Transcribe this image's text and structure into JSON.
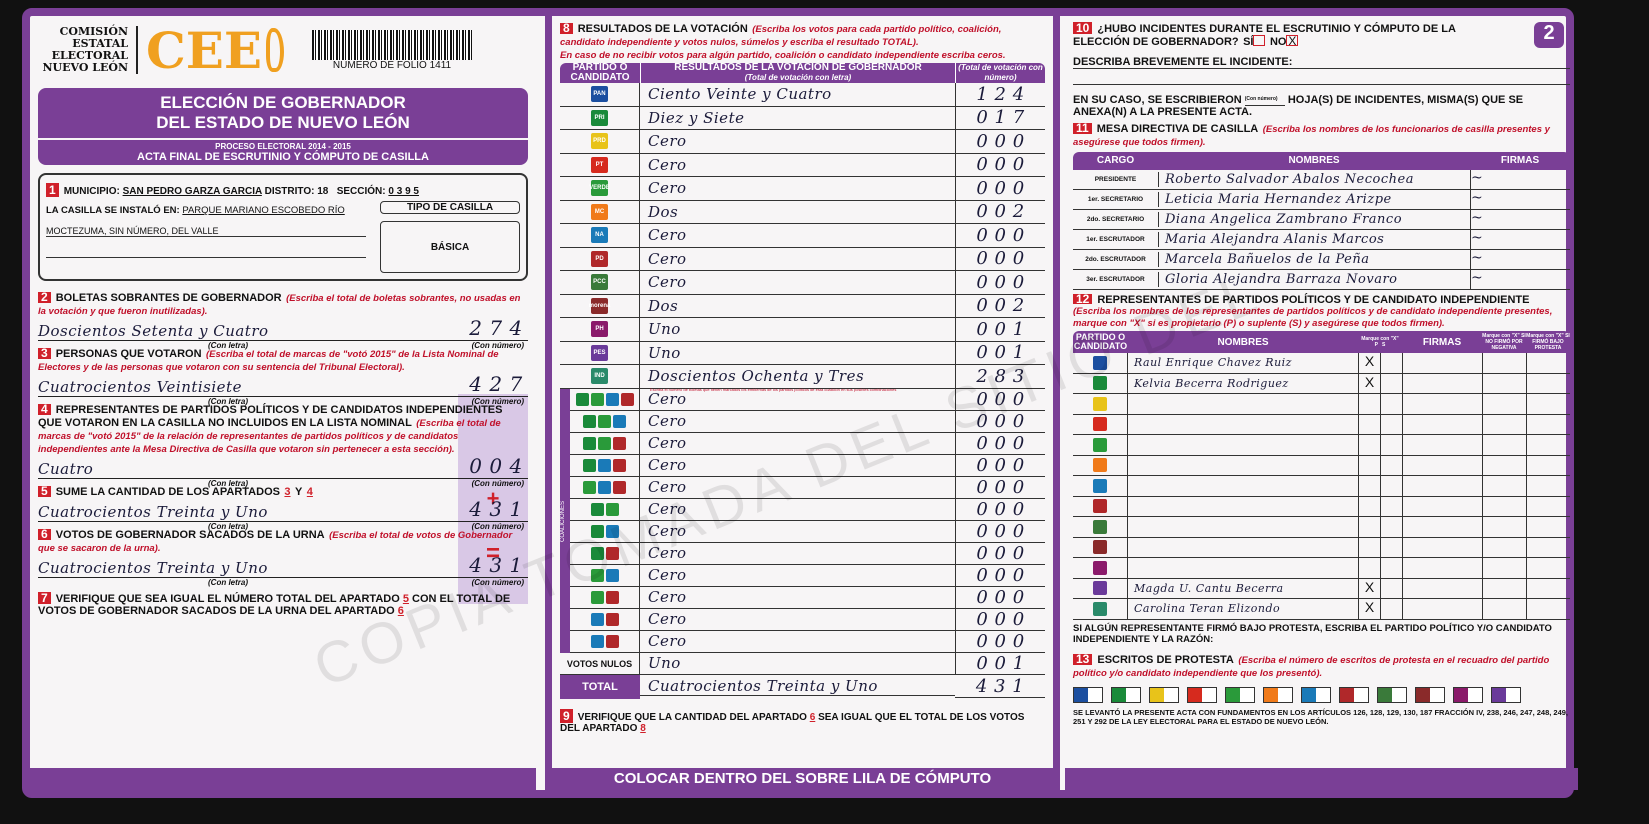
{
  "colors": {
    "purple": "#7a3f96",
    "red": "#d0202a",
    "orange": "#f0a020"
  },
  "header": {
    "org": [
      "COMISIÓN",
      "ESTATAL",
      "ELECTORAL",
      "NUEVO LEÓN"
    ],
    "logo": "CEE",
    "folio": "NUMERO DE FOLIO 1411",
    "title1": "ELECCIÓN DE GOBERNADOR",
    "title2": "DEL ESTADO DE NUEVO LEÓN",
    "process": "PROCESO ELECTORAL 2014 - 2015",
    "acta": "ACTA FINAL DE ESCRUTINIO Y CÓMPUTO DE CASILLA",
    "page": "2"
  },
  "s1": {
    "n": "1",
    "municipio_label": "MUNICIPIO:",
    "municipio": "SAN PEDRO GARZA GARCIA",
    "distrito_label": "DISTRITO:",
    "distrito": "18",
    "seccion_label": "SECCIÓN:",
    "seccion": "0 3 9 5",
    "instalo_label": "LA CASILLA SE INSTALÓ EN:",
    "instalo1": "PARQUE MARIANO ESCOBEDO RÍO",
    "instalo2": "MOCTEZUMA, SIN NÚMERO, DEL VALLE",
    "tipo_label": "TIPO DE CASILLA",
    "tipo": "BÁSICA"
  },
  "labels": {
    "con_letra": "(Con letra)",
    "con_numero": "(Con número)",
    "plus": "+",
    "equals": "="
  },
  "s2": {
    "n": "2",
    "title": "BOLETAS SOBRANTES DE GOBERNADOR",
    "note": "(Escriba el total de boletas sobrantes, no usadas en la votación y que fueron inutilizadas).",
    "letra": "Doscientos Setenta y Cuatro",
    "numero": "2 7 4"
  },
  "s3": {
    "n": "3",
    "title": "PERSONAS QUE VOTARON",
    "note": "(Escriba el total de marcas de \"votó 2015\" de la Lista Nominal de Electores y de las personas que votaron con su sentencia del Tribunal Electoral).",
    "letra": "Cuatrocientos Veintisiete",
    "numero": "4 2 7"
  },
  "s4": {
    "n": "4",
    "title": "REPRESENTANTES DE PARTIDOS POLÍTICOS Y DE CANDIDATOS INDEPENDIENTES QUE VOTARON EN LA CASILLA NO INCLUIDOS EN LA LISTA NOMINAL",
    "note": "(Escriba el total de marcas de \"votó 2015\" de la relación de representantes de partidos políticos y de candidatos independientes ante la Mesa Directiva de Casilla que votaron sin pertenecer a esta sección).",
    "letra": "Cuatro",
    "numero": "0 0 4"
  },
  "s5": {
    "n": "5",
    "title": "SUME LA CANTIDAD DE LOS APARTADOS",
    "a": "3",
    "y": "Y",
    "b": "4",
    "letra": "Cuatrocientos Treinta y Uno",
    "numero": "4 3 1"
  },
  "s6": {
    "n": "6",
    "title": "VOTOS DE GOBERNADOR SACADOS DE LA URNA",
    "note": "(Escriba el total de votos de Gobernador que se sacaron de la urna).",
    "letra": "Cuatrocientos Treinta y Uno",
    "numero": "4 3 1"
  },
  "s7": {
    "n": "7",
    "t1": "VERIFIQUE QUE SEA IGUAL EL NÚMERO TOTAL DEL APARTADO",
    "a": "5",
    "t2": "CON EL TOTAL DE VOTOS DE GOBERNADOR SACADOS DE LA URNA DEL APARTADO",
    "b": "6"
  },
  "s8": {
    "n": "8",
    "title": "RESULTADOS DE LA VOTACIÓN",
    "note1": "(Escriba los votos para cada partido político, coalición, candidato independiente y votos nulos, súmelos y escriba el resultado TOTAL).",
    "note2": "En caso de no recibir votos para algún partido, coalición o candidato independiente escriba ceros.",
    "h_partido": "PARTIDO O CANDIDATO",
    "h_result": "RESULTADOS DE LA VOTACIÓN DE GOBERNADOR",
    "h_result_sub": "(Total de votación con letra)",
    "h_num": "(Total de votación con número)",
    "coaliciones": "COALICIONES",
    "rows": [
      {
        "logo": "PAN",
        "color": "#1c4fa0",
        "letra": "Ciento Veinte y Cuatro",
        "numero": "1 2 4"
      },
      {
        "logo": "PRI",
        "color": "#1a8a3a",
        "letra": "Diez y Siete",
        "numero": "0 1 7"
      },
      {
        "logo": "PRD",
        "color": "#e8c31a",
        "letra": "Cero",
        "numero": "0 0 0"
      },
      {
        "logo": "PT",
        "color": "#d62a1e",
        "letra": "Cero",
        "numero": "0 0 0"
      },
      {
        "logo": "VERDE",
        "color": "#2a9a3a",
        "letra": "Cero",
        "numero": "0 0 0"
      },
      {
        "logo": "MC",
        "color": "#f07a1a",
        "letra": "Dos",
        "numero": "0 0 2"
      },
      {
        "logo": "NA",
        "color": "#1a7ab8",
        "letra": "Cero",
        "numero": "0 0 0"
      },
      {
        "logo": "PD",
        "color": "#b0282a",
        "letra": "Cero",
        "numero": "0 0 0"
      },
      {
        "logo": "PCC",
        "color": "#3a7a3a",
        "letra": "Cero",
        "numero": "0 0 0"
      },
      {
        "logo": "morena",
        "color": "#8a2a2a",
        "letra": "Dos",
        "numero": "0 0 2"
      },
      {
        "logo": "PH",
        "color": "#8a1a6a",
        "letra": "Uno",
        "numero": "0 0 1"
      },
      {
        "logo": "PES",
        "color": "#6a3a9a",
        "letra": "Uno",
        "numero": "0 0 1"
      },
      {
        "logo": "IND",
        "color": "#2a8a6a",
        "letra": "Doscientos Ochenta y Tres",
        "numero": "2 8 3"
      }
    ],
    "coalition_note": "Escriba el número de boletas que tienen marcados los emblemas de los partidos políticos de esta coalición en sus posibles combinaciones",
    "coalition_rows": [
      {
        "logos": "PRI-VERDE-NA-PD",
        "letra": "Cero",
        "numero": "0 0 0"
      },
      {
        "logos": "PRI-VERDE-NA",
        "letra": "Cero",
        "numero": "0 0 0"
      },
      {
        "logos": "PRI-VERDE-PD",
        "letra": "Cero",
        "numero": "0 0 0"
      },
      {
        "logos": "PRI-NA-PD",
        "letra": "Cero",
        "numero": "0 0 0"
      },
      {
        "logos": "VERDE-NA-PD",
        "letra": "Cero",
        "numero": "0 0 0"
      },
      {
        "logos": "PRI-VERDE",
        "letra": "Cero",
        "numero": "0 0 0"
      },
      {
        "logos": "PRI-NA",
        "letra": "Cero",
        "numero": "0 0 0"
      },
      {
        "logos": "PRI-PD",
        "letra": "Cero",
        "numero": "0 0 0"
      },
      {
        "logos": "VERDE-NA",
        "letra": "Cero",
        "numero": "0 0 0"
      },
      {
        "logos": "VERDE-PD",
        "letra": "Cero",
        "numero": "0 0 0"
      },
      {
        "logos": "NA-PD",
        "letra": "Cero",
        "numero": "0 0 0"
      },
      {
        "logos": "NA-PD-2",
        "letra": "Cero",
        "numero": "0 0 0"
      }
    ],
    "nulos_label": "VOTOS NULOS",
    "nulos_letra": "Uno",
    "nulos_numero": "0 0 1",
    "total_label": "TOTAL",
    "total_letra": "Cuatrocientos Treinta y Uno",
    "total_numero": "4 3 1"
  },
  "s9": {
    "n": "9",
    "t1": "VERIFIQUE QUE LA CANTIDAD DEL APARTADO",
    "a": "6",
    "t2": "SEA IGUAL QUE EL TOTAL DE LOS VOTOS DEL APARTADO",
    "b": "8"
  },
  "footer": "COLOCAR DENTRO DEL SOBRE LILA DE CÓMPUTO",
  "s10": {
    "n": "10",
    "q": "¿HUBO INCIDENTES DURANTE EL ESCRUTINIO Y CÓMPUTO DE LA ELECCIÓN DE GOBERNADOR?",
    "si": "SÍ",
    "no": "NO",
    "no_mark": "X",
    "describa": "DESCRIBA BREVEMENTE EL INCIDENTE:",
    "caso1": "EN SU CASO, SE ESCRIBIERON",
    "con_numero": "(Con número)",
    "caso2": "HOJA(S) DE INCIDENTES, MISMA(S) QUE SE ANEXA(N) A LA PRESENTE ACTA."
  },
  "s11": {
    "n": "11",
    "title": "MESA DIRECTIVA DE CASILLA",
    "note": "(Escriba los nombres de los funcionarios de casilla presentes y asegúrese que todos firmen).",
    "h_cargo": "CARGO",
    "h_nombres": "NOMBRES",
    "h_firmas": "FIRMAS",
    "rows": [
      {
        "cargo": "PRESIDENTE",
        "nombre": "Roberto Salvador Abalos Necochea"
      },
      {
        "cargo": "1er. SECRETARIO",
        "nombre": "Leticia Maria Hernandez Arizpe"
      },
      {
        "cargo": "2do. SECRETARIO",
        "nombre": "Diana Angelica Zambrano Franco"
      },
      {
        "cargo": "1er. ESCRUTADOR",
        "nombre": "Maria Alejandra Alanis Marcos"
      },
      {
        "cargo": "2do. ESCRUTADOR",
        "nombre": "Marcela Bañuelos de la Peña"
      },
      {
        "cargo": "3er. ESCRUTADOR",
        "nombre": "Gloria Alejandra Barraza Novaro"
      }
    ]
  },
  "s12": {
    "n": "12",
    "title": "REPRESENTANTES DE PARTIDOS POLÍTICOS Y DE CANDIDATO INDEPENDIENTE",
    "note": "(Escriba los nombres de los representantes de partidos políticos y de candidato independiente presentes, marque con \"X\" si es propietario (P) o suplente (S) y asegúrese que todos firmen).",
    "h_partido": "PARTIDO O CANDIDATO",
    "h_nombres": "NOMBRES",
    "h_marque": "Marque con \"X\"",
    "h_p": "P",
    "h_s": "S",
    "h_firmas": "FIRMAS",
    "h_negativa": "Marque con \"X\" SI NO FIRMÓ POR NEGATIVA",
    "h_protesta": "Marque con \"X\" SI FIRMÓ BAJO PROTESTA",
    "rows": [
      {
        "logo": "PAN",
        "nombre": "Raul Enrique Chavez Ruiz",
        "p": "X"
      },
      {
        "logo": "PRI",
        "nombre": "Kelvia Becerra Rodriguez",
        "p": "X"
      },
      {
        "logo": "PRD",
        "nombre": "",
        "p": ""
      },
      {
        "logo": "PT",
        "nombre": "",
        "p": ""
      },
      {
        "logo": "VERDE",
        "nombre": "",
        "p": ""
      },
      {
        "logo": "MC",
        "nombre": "",
        "p": ""
      },
      {
        "logo": "NA",
        "nombre": "",
        "p": ""
      },
      {
        "logo": "PD",
        "nombre": "",
        "p": ""
      },
      {
        "logo": "PCC",
        "nombre": "",
        "p": ""
      },
      {
        "logo": "morena",
        "nombre": "",
        "p": ""
      },
      {
        "logo": "PH",
        "nombre": "",
        "p": ""
      },
      {
        "logo": "PES",
        "nombre": "Magda U. Cantu Becerra",
        "p": "X"
      },
      {
        "logo": "IND",
        "nombre": "Carolina Teran Elizondo",
        "p": "X"
      }
    ],
    "protesta": "SI ALGÚN REPRESENTANTE FIRMÓ BAJO PROTESTA, ESCRIBA EL PARTIDO POLÍTICO Y/O CANDIDATO INDEPENDIENTE Y LA RAZÓN:"
  },
  "s13": {
    "n": "13",
    "title": "ESCRITOS DE PROTESTA",
    "note": "(Escriba el número de escritos de protesta en el recuadro del partido político y/o candidato independiente que los presentó).",
    "legal": "SE LEVANTÓ LA PRESENTE ACTA CON FUNDAMENTOS EN LOS ARTÍCULOS 126, 128, 129, 130, 187 FRACCIÓN IV, 238, 246, 247, 248, 249, 251 Y 292 DE LA LEY ELECTORAL PARA EL ESTADO DE NUEVO LEÓN."
  },
  "watermark": "COPIA TOMADA DEL SITIO DEL"
}
